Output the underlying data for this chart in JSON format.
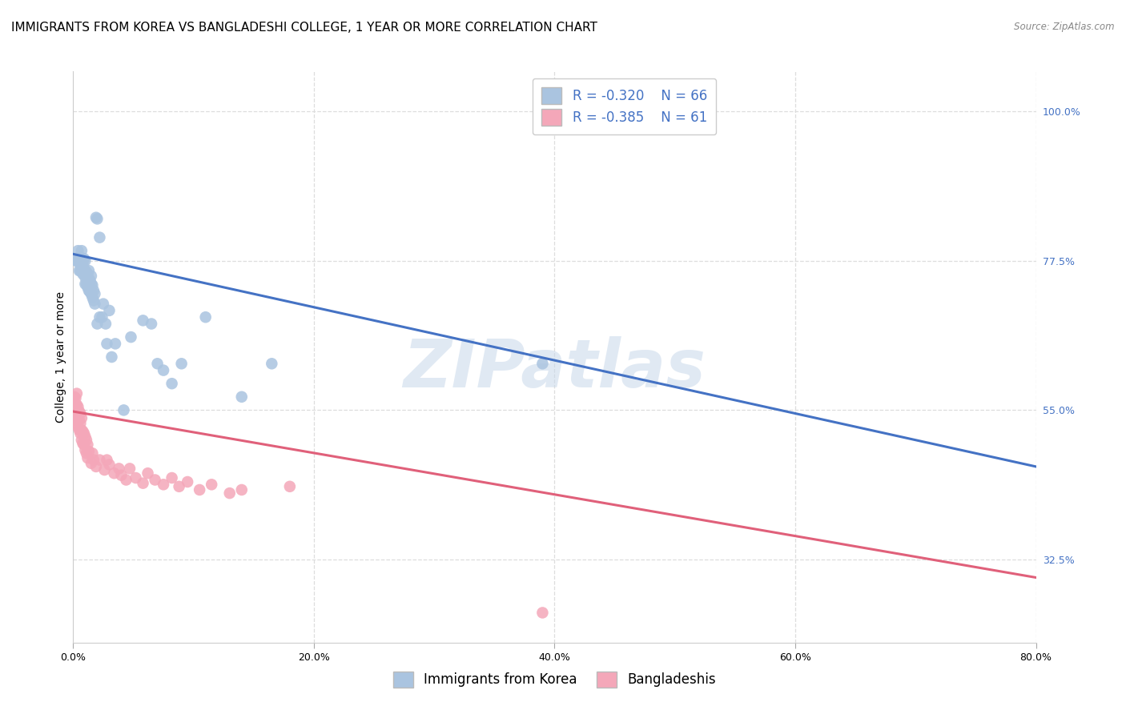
{
  "title": "IMMIGRANTS FROM KOREA VS BANGLADESHI COLLEGE, 1 YEAR OR MORE CORRELATION CHART",
  "source": "Source: ZipAtlas.com",
  "ylabel": "College, 1 year or more",
  "right_yticks": [
    0.325,
    0.55,
    0.775,
    1.0
  ],
  "right_ytick_labels": [
    "32.5%",
    "55.0%",
    "77.5%",
    "100.0%"
  ],
  "legend_R1": "-0.320",
  "legend_N1": "66",
  "legend_R2": "-0.385",
  "legend_N2": "61",
  "legend_label1": "Immigrants from Korea",
  "legend_label2": "Bangladeshis",
  "blue_color": "#aac4e0",
  "blue_line_color": "#4472c4",
  "pink_color": "#f4a7b9",
  "pink_line_color": "#e0607a",
  "blue_scatter_x": [
    0.002,
    0.003,
    0.004,
    0.004,
    0.005,
    0.005,
    0.006,
    0.006,
    0.006,
    0.007,
    0.007,
    0.007,
    0.008,
    0.008,
    0.008,
    0.009,
    0.009,
    0.009,
    0.01,
    0.01,
    0.01,
    0.01,
    0.011,
    0.011,
    0.012,
    0.012,
    0.013,
    0.013,
    0.013,
    0.014,
    0.014,
    0.015,
    0.015,
    0.015,
    0.016,
    0.016,
    0.017,
    0.017,
    0.018,
    0.018,
    0.019,
    0.02,
    0.02,
    0.022,
    0.022,
    0.024,
    0.025,
    0.027,
    0.028,
    0.03,
    0.032,
    0.035,
    0.042,
    0.048,
    0.058,
    0.065,
    0.07,
    0.075,
    0.082,
    0.09,
    0.11,
    0.14,
    0.165,
    0.39,
    0.42,
    0.45
  ],
  "blue_scatter_y": [
    0.775,
    0.775,
    0.775,
    0.79,
    0.76,
    0.775,
    0.76,
    0.77,
    0.78,
    0.76,
    0.775,
    0.79,
    0.755,
    0.77,
    0.775,
    0.755,
    0.762,
    0.778,
    0.74,
    0.75,
    0.76,
    0.775,
    0.74,
    0.758,
    0.735,
    0.755,
    0.73,
    0.748,
    0.76,
    0.728,
    0.745,
    0.725,
    0.74,
    0.752,
    0.72,
    0.738,
    0.715,
    0.73,
    0.71,
    0.725,
    0.84,
    0.68,
    0.838,
    0.69,
    0.81,
    0.69,
    0.71,
    0.68,
    0.65,
    0.7,
    0.63,
    0.65,
    0.55,
    0.66,
    0.685,
    0.68,
    0.62,
    0.61,
    0.59,
    0.62,
    0.69,
    0.57,
    0.62,
    0.62,
    0.995,
    1.0
  ],
  "pink_scatter_x": [
    0.001,
    0.001,
    0.001,
    0.002,
    0.002,
    0.002,
    0.002,
    0.003,
    0.003,
    0.003,
    0.003,
    0.004,
    0.004,
    0.004,
    0.005,
    0.005,
    0.005,
    0.006,
    0.006,
    0.006,
    0.007,
    0.007,
    0.007,
    0.008,
    0.008,
    0.009,
    0.009,
    0.01,
    0.01,
    0.011,
    0.011,
    0.012,
    0.012,
    0.013,
    0.015,
    0.016,
    0.017,
    0.019,
    0.022,
    0.026,
    0.028,
    0.03,
    0.034,
    0.038,
    0.04,
    0.044,
    0.047,
    0.052,
    0.058,
    0.062,
    0.068,
    0.075,
    0.082,
    0.088,
    0.095,
    0.105,
    0.115,
    0.13,
    0.14,
    0.18,
    0.39
  ],
  "pink_scatter_y": [
    0.545,
    0.558,
    0.57,
    0.535,
    0.545,
    0.558,
    0.568,
    0.53,
    0.545,
    0.558,
    0.575,
    0.525,
    0.54,
    0.555,
    0.52,
    0.535,
    0.548,
    0.515,
    0.53,
    0.545,
    0.505,
    0.52,
    0.538,
    0.5,
    0.518,
    0.498,
    0.515,
    0.49,
    0.51,
    0.485,
    0.505,
    0.478,
    0.498,
    0.488,
    0.47,
    0.485,
    0.475,
    0.465,
    0.475,
    0.46,
    0.475,
    0.468,
    0.455,
    0.462,
    0.452,
    0.445,
    0.462,
    0.448,
    0.44,
    0.455,
    0.445,
    0.438,
    0.448,
    0.435,
    0.442,
    0.43,
    0.438,
    0.425,
    0.43,
    0.435,
    0.245
  ],
  "blue_line_x": [
    0.0,
    0.8
  ],
  "blue_line_y": [
    0.785,
    0.465
  ],
  "pink_line_x": [
    0.0,
    0.8
  ],
  "pink_line_y": [
    0.548,
    0.298
  ],
  "xlim": [
    0.0,
    0.8
  ],
  "ylim": [
    0.2,
    1.06
  ],
  "xticks": [
    0.0,
    0.2,
    0.4,
    0.6,
    0.8
  ],
  "xtick_labels": [
    "0.0%",
    "20.0%",
    "40.0%",
    "60.0%",
    "80.0%"
  ],
  "watermark": "ZIPatlas",
  "watermark_color": "#c8d8ea",
  "grid_color": "#dddddd",
  "title_fontsize": 11,
  "axis_label_fontsize": 10,
  "tick_fontsize": 9,
  "legend_fontsize": 12
}
